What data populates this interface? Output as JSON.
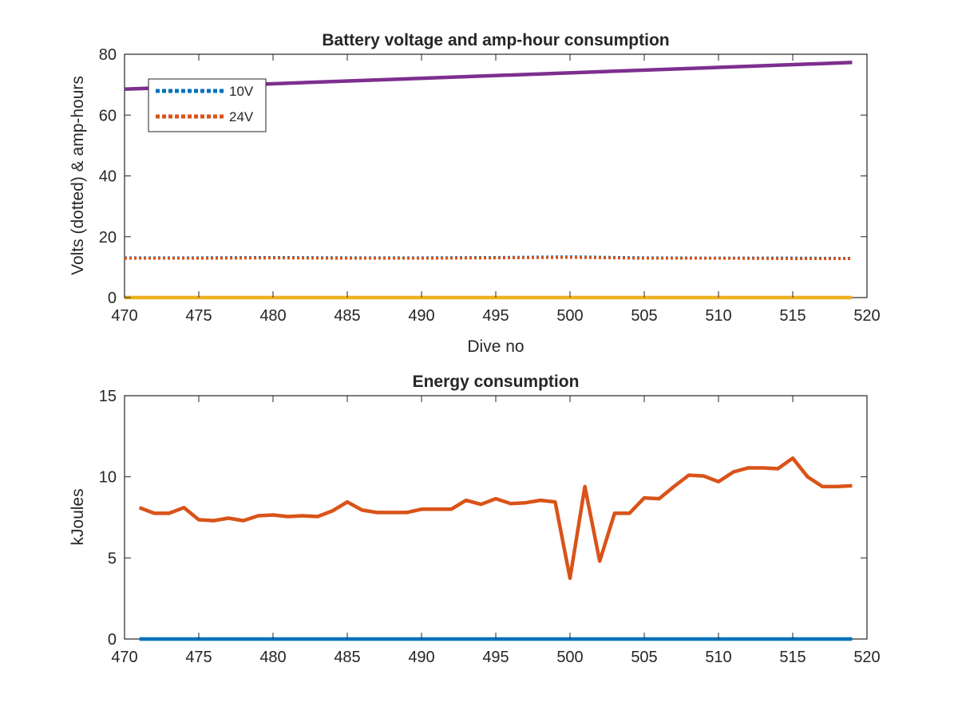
{
  "figure": {
    "background": "#ffffff"
  },
  "chart_data": [
    {
      "type": "line",
      "title": "Battery voltage and amp-hour consumption",
      "xlabel": "Dive no",
      "ylabel": "Volts (dotted) & amp-hours",
      "xlim": [
        470,
        520
      ],
      "ylim": [
        0,
        80
      ],
      "xticks": [
        "470",
        "475",
        "480",
        "485",
        "490",
        "495",
        "500",
        "505",
        "510",
        "515",
        "520"
      ],
      "yticks": [
        "0",
        "20",
        "40",
        "60",
        "80"
      ],
      "grid": false,
      "legend_position": "top-left",
      "series": [
        {
          "name": "10V",
          "style": "dotted",
          "color": "#0072BD",
          "x": [
            470,
            475,
            480,
            485,
            490,
            495,
            500,
            505,
            510,
            515,
            519
          ],
          "y": [
            13.1,
            13.1,
            13.2,
            13.1,
            13.1,
            13.2,
            13.4,
            13.1,
            13.0,
            13.0,
            12.9
          ]
        },
        {
          "name": "24V",
          "style": "dotted",
          "color": "#D95319",
          "x": [
            470,
            475,
            480,
            485,
            490,
            495,
            500,
            505,
            510,
            515,
            519
          ],
          "y": [
            12.9,
            12.9,
            13.0,
            12.9,
            12.9,
            13.0,
            13.2,
            12.9,
            12.9,
            12.8,
            12.8
          ]
        },
        {
          "style": "solid",
          "color": "#7E2F8E",
          "x": [
            470,
            519
          ],
          "y": [
            68.5,
            77.3
          ]
        },
        {
          "style": "solid",
          "color": "#EDB120",
          "x": [
            470,
            519
          ],
          "y": [
            0,
            0
          ]
        }
      ]
    },
    {
      "type": "line",
      "title": "Energy consumption",
      "xlabel": "",
      "ylabel": "kJoules",
      "xlim": [
        470,
        520
      ],
      "ylim": [
        0,
        15
      ],
      "xticks": [
        "470",
        "475",
        "480",
        "485",
        "490",
        "495",
        "500",
        "505",
        "510",
        "515",
        "520"
      ],
      "yticks": [
        "0",
        "5",
        "10",
        "15"
      ],
      "grid": false,
      "series": [
        {
          "style": "solid",
          "color": "#D95319",
          "x": [
            471,
            472,
            473,
            474,
            475,
            476,
            477,
            478,
            479,
            480,
            481,
            482,
            483,
            484,
            485,
            486,
            487,
            488,
            489,
            490,
            491,
            492,
            493,
            494,
            495,
            496,
            497,
            498,
            499,
            500,
            501,
            502,
            503,
            504,
            505,
            506,
            507,
            508,
            509,
            510,
            511,
            512,
            513,
            514,
            515,
            516,
            517,
            518,
            519
          ],
          "y": [
            8.1,
            7.75,
            7.75,
            8.1,
            7.35,
            7.3,
            7.45,
            7.3,
            7.6,
            7.65,
            7.55,
            7.6,
            7.55,
            7.9,
            8.45,
            7.95,
            7.8,
            7.8,
            7.8,
            8.0,
            8.0,
            8.0,
            8.55,
            8.3,
            8.65,
            8.35,
            8.4,
            8.55,
            8.45,
            3.75,
            9.4,
            4.8,
            7.75,
            7.75,
            8.7,
            8.65,
            9.4,
            10.1,
            10.05,
            9.7,
            10.3,
            10.55,
            10.55,
            10.5,
            11.15,
            10.0,
            9.4,
            9.4,
            9.45
          ]
        },
        {
          "style": "solid",
          "color": "#0072BD",
          "x": [
            471,
            519
          ],
          "y": [
            0,
            0
          ]
        }
      ]
    }
  ]
}
